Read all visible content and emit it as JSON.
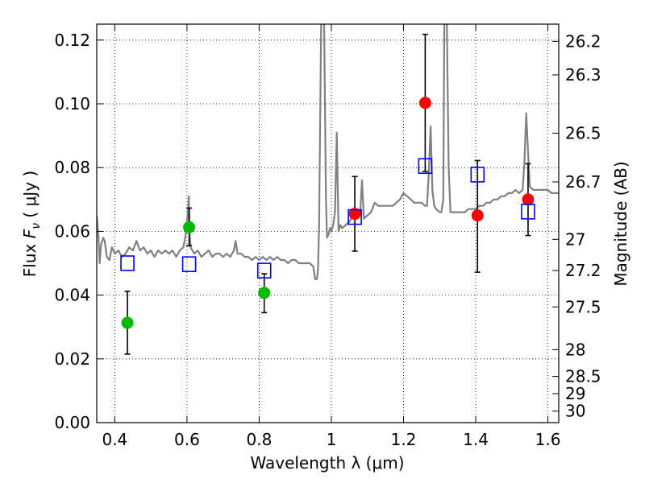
{
  "chart_data": {
    "type": "scatter",
    "title": "",
    "xlabel": "Wavelength  λ (μm)",
    "ylabel_prefix": "Flux  ",
    "ylabel_var": "F",
    "ylabel_sub": "ν",
    "ylabel_suffix": "  ( μJy )",
    "y2label": "Magnitude (AB)",
    "xlim": [
      0.35,
      1.63
    ],
    "ylim": [
      0.0,
      0.125
    ],
    "grid": true,
    "grid_style": "dotted",
    "x_ticks": [
      0.4,
      0.6,
      0.8,
      1.0,
      1.2,
      1.4,
      1.6
    ],
    "x_tick_labels": [
      "0.4",
      "0.6",
      "0.8",
      "1",
      "1.2",
      "1.4",
      "1.6"
    ],
    "y_ticks": [
      0.0,
      0.02,
      0.04,
      0.06,
      0.08,
      0.1,
      0.12
    ],
    "y_tick_labels": [
      "0.00",
      "0.02",
      "0.04",
      "0.06",
      "0.08",
      "0.10",
      "0.12"
    ],
    "y2_ticks": [
      {
        "label": "26.2",
        "flux": 0.1196
      },
      {
        "label": "26.3",
        "flux": 0.1091
      },
      {
        "label": "26.5",
        "flux": 0.0908
      },
      {
        "label": "26.7",
        "flux": 0.0755
      },
      {
        "label": "27",
        "flux": 0.0575
      },
      {
        "label": "27.2",
        "flux": 0.0477
      },
      {
        "label": "27.5",
        "flux": 0.0363
      },
      {
        "label": "28",
        "flux": 0.0229
      },
      {
        "label": "28.5",
        "flux": 0.0145
      },
      {
        "label": "29",
        "flux": 0.0091
      },
      {
        "label": "30",
        "flux": 0.0036
      }
    ],
    "colors": {
      "sed_line": "#808080",
      "optical_points": "#00bb00",
      "nir_points": "#ff0000",
      "model_squares": "#0000ff",
      "errorbar": "#000000"
    },
    "series": [
      {
        "kind": "line",
        "points": [
          [
            0.35,
            0.065
          ],
          [
            0.355,
            0.058
          ],
          [
            0.358,
            0.05
          ],
          [
            0.362,
            0.056
          ],
          [
            0.368,
            0.058
          ],
          [
            0.372,
            0.057
          ],
          [
            0.378,
            0.052
          ],
          [
            0.385,
            0.051
          ],
          [
            0.392,
            0.055
          ],
          [
            0.4,
            0.053
          ],
          [
            0.41,
            0.054
          ],
          [
            0.42,
            0.052
          ],
          [
            0.43,
            0.053
          ],
          [
            0.44,
            0.055
          ],
          [
            0.45,
            0.054
          ],
          [
            0.46,
            0.057
          ],
          [
            0.47,
            0.054
          ],
          [
            0.48,
            0.055
          ],
          [
            0.49,
            0.053
          ],
          [
            0.5,
            0.054
          ],
          [
            0.51,
            0.052
          ],
          [
            0.52,
            0.054
          ],
          [
            0.53,
            0.053
          ],
          [
            0.54,
            0.054
          ],
          [
            0.55,
            0.053
          ],
          [
            0.56,
            0.054
          ],
          [
            0.57,
            0.052
          ],
          [
            0.58,
            0.054
          ],
          [
            0.59,
            0.055
          ],
          [
            0.595,
            0.058
          ],
          [
            0.6,
            0.063
          ],
          [
            0.603,
            0.067
          ],
          [
            0.605,
            0.071
          ],
          [
            0.607,
            0.06
          ],
          [
            0.61,
            0.055
          ],
          [
            0.62,
            0.053
          ],
          [
            0.63,
            0.054
          ],
          [
            0.64,
            0.052
          ],
          [
            0.65,
            0.053
          ],
          [
            0.66,
            0.054
          ],
          [
            0.67,
            0.052
          ],
          [
            0.68,
            0.053
          ],
          [
            0.69,
            0.053
          ],
          [
            0.7,
            0.052
          ],
          [
            0.71,
            0.053
          ],
          [
            0.72,
            0.052
          ],
          [
            0.73,
            0.054
          ],
          [
            0.735,
            0.057
          ],
          [
            0.74,
            0.053
          ],
          [
            0.75,
            0.053
          ],
          [
            0.76,
            0.052
          ],
          [
            0.77,
            0.052
          ],
          [
            0.78,
            0.051
          ],
          [
            0.79,
            0.052
          ],
          [
            0.8,
            0.051
          ],
          [
            0.81,
            0.052
          ],
          [
            0.82,
            0.051
          ],
          [
            0.83,
            0.052
          ],
          [
            0.84,
            0.051
          ],
          [
            0.85,
            0.052
          ],
          [
            0.86,
            0.051
          ],
          [
            0.87,
            0.051
          ],
          [
            0.88,
            0.05
          ],
          [
            0.89,
            0.051
          ],
          [
            0.9,
            0.051
          ],
          [
            0.91,
            0.05
          ],
          [
            0.92,
            0.05
          ],
          [
            0.93,
            0.05
          ],
          [
            0.94,
            0.05
          ],
          [
            0.95,
            0.049
          ],
          [
            0.955,
            0.045
          ],
          [
            0.96,
            0.045
          ],
          [
            0.963,
            0.048
          ],
          [
            0.966,
            0.062
          ],
          [
            0.969,
            0.095
          ],
          [
            0.972,
            0.126
          ],
          [
            0.98,
            0.126
          ],
          [
            0.985,
            0.07
          ],
          [
            0.988,
            0.058
          ],
          [
            0.992,
            0.059
          ],
          [
            0.996,
            0.061
          ],
          [
            1.0,
            0.06
          ],
          [
            1.005,
            0.062
          ],
          [
            1.01,
            0.066
          ],
          [
            1.015,
            0.091
          ],
          [
            1.02,
            0.06
          ],
          [
            1.025,
            0.062
          ],
          [
            1.03,
            0.061
          ],
          [
            1.04,
            0.062
          ],
          [
            1.05,
            0.063
          ],
          [
            1.06,
            0.065
          ],
          [
            1.07,
            0.065
          ],
          [
            1.08,
            0.066
          ],
          [
            1.085,
            0.076
          ],
          [
            1.09,
            0.064
          ],
          [
            1.1,
            0.065
          ],
          [
            1.11,
            0.066
          ],
          [
            1.12,
            0.069
          ],
          [
            1.13,
            0.068
          ],
          [
            1.14,
            0.068
          ],
          [
            1.15,
            0.068
          ],
          [
            1.16,
            0.068
          ],
          [
            1.17,
            0.068
          ],
          [
            1.18,
            0.069
          ],
          [
            1.19,
            0.07
          ],
          [
            1.2,
            0.072
          ],
          [
            1.21,
            0.071
          ],
          [
            1.22,
            0.07
          ],
          [
            1.23,
            0.069
          ],
          [
            1.24,
            0.069
          ],
          [
            1.25,
            0.069
          ],
          [
            1.26,
            0.068
          ],
          [
            1.265,
            0.068
          ],
          [
            1.27,
            0.078
          ],
          [
            1.275,
            0.093
          ],
          [
            1.28,
            0.073
          ],
          [
            1.285,
            0.068
          ],
          [
            1.29,
            0.067
          ],
          [
            1.3,
            0.066
          ],
          [
            1.305,
            0.066
          ],
          [
            1.31,
            0.07
          ],
          [
            1.313,
            0.126
          ],
          [
            1.32,
            0.126
          ],
          [
            1.325,
            0.08
          ],
          [
            1.33,
            0.066
          ],
          [
            1.34,
            0.066
          ],
          [
            1.35,
            0.066
          ],
          [
            1.36,
            0.066
          ],
          [
            1.37,
            0.066
          ],
          [
            1.38,
            0.067
          ],
          [
            1.39,
            0.067
          ],
          [
            1.4,
            0.067
          ],
          [
            1.41,
            0.068
          ],
          [
            1.42,
            0.068
          ],
          [
            1.43,
            0.069
          ],
          [
            1.44,
            0.069
          ],
          [
            1.45,
            0.07
          ],
          [
            1.46,
            0.07
          ],
          [
            1.47,
            0.071
          ],
          [
            1.48,
            0.071
          ],
          [
            1.49,
            0.072
          ],
          [
            1.5,
            0.072
          ],
          [
            1.51,
            0.073
          ],
          [
            1.52,
            0.072
          ],
          [
            1.53,
            0.073
          ],
          [
            1.535,
            0.082
          ],
          [
            1.54,
            0.097
          ],
          [
            1.545,
            0.085
          ],
          [
            1.55,
            0.074
          ],
          [
            1.56,
            0.073
          ],
          [
            1.57,
            0.073
          ],
          [
            1.58,
            0.073
          ],
          [
            1.59,
            0.073
          ],
          [
            1.6,
            0.073
          ],
          [
            1.61,
            0.072
          ],
          [
            1.62,
            0.072
          ],
          [
            1.63,
            0.072
          ]
        ]
      },
      {
        "kind": "points",
        "marker": "circle",
        "color_key": "optical_points",
        "points": [
          {
            "x": 0.435,
            "y": 0.0313,
            "ylo": 0.0215,
            "yhi": 0.0412
          },
          {
            "x": 0.606,
            "y": 0.0613,
            "ylo": 0.0555,
            "yhi": 0.0673
          },
          {
            "x": 0.814,
            "y": 0.0407,
            "ylo": 0.0345,
            "yhi": 0.0467
          }
        ]
      },
      {
        "kind": "points",
        "marker": "circle",
        "color_key": "nir_points",
        "points": [
          {
            "x": 1.065,
            "y": 0.0655,
            "ylo": 0.0538,
            "yhi": 0.0772
          },
          {
            "x": 1.26,
            "y": 0.1003,
            "ylo": 0.0788,
            "yhi": 0.1218
          },
          {
            "x": 1.405,
            "y": 0.065,
            "ylo": 0.0472,
            "yhi": 0.0822
          },
          {
            "x": 1.545,
            "y": 0.07,
            "ylo": 0.0587,
            "yhi": 0.0812
          }
        ]
      },
      {
        "kind": "points",
        "marker": "square",
        "color_key": "model_squares",
        "points": [
          {
            "x": 0.435,
            "y": 0.05
          },
          {
            "x": 0.606,
            "y": 0.0497
          },
          {
            "x": 0.814,
            "y": 0.0477
          },
          {
            "x": 1.065,
            "y": 0.0645
          },
          {
            "x": 1.26,
            "y": 0.0805
          },
          {
            "x": 1.405,
            "y": 0.0778
          },
          {
            "x": 1.545,
            "y": 0.0662
          }
        ]
      }
    ]
  }
}
